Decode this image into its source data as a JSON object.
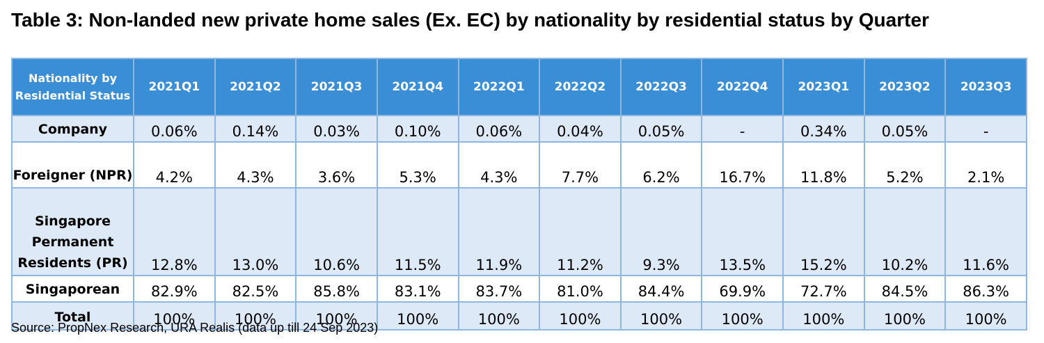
{
  "title": "Table 3: Non-landed new private home sales (Ex. EC) by nationality by residential status by Quarter",
  "table": {
    "corner_header": "Nationality by Residential Status",
    "quarters": [
      "2021Q1",
      "2021Q2",
      "2021Q3",
      "2021Q4",
      "2022Q1",
      "2022Q2",
      "2022Q3",
      "2022Q4",
      "2023Q1",
      "2023Q2",
      "2023Q3"
    ],
    "rows": [
      {
        "label": "Company",
        "values": [
          "0.06%",
          "0.14%",
          "0.03%",
          "0.10%",
          "0.06%",
          "0.04%",
          "0.05%",
          "-",
          "0.34%",
          "0.05%",
          "-"
        ]
      },
      {
        "label": "Foreigner (NPR)",
        "values": [
          "4.2%",
          "4.3%",
          "3.6%",
          "5.3%",
          "4.3%",
          "7.7%",
          "6.2%",
          "16.7%",
          "11.8%",
          "5.2%",
          "2.1%"
        ]
      },
      {
        "label": "Singapore Permanent Residents (PR)",
        "values": [
          "12.8%",
          "13.0%",
          "10.6%",
          "11.5%",
          "11.9%",
          "11.2%",
          "9.3%",
          "13.5%",
          "15.2%",
          "10.2%",
          "11.6%"
        ]
      },
      {
        "label": "Singaporean",
        "values": [
          "82.9%",
          "82.5%",
          "85.8%",
          "83.1%",
          "83.7%",
          "81.0%",
          "84.4%",
          "69.9%",
          "72.7%",
          "84.5%",
          "86.3%"
        ]
      },
      {
        "label": "Total",
        "values": [
          "100%",
          "100%",
          "100%",
          "100%",
          "100%",
          "100%",
          "100%",
          "100%",
          "100%",
          "100%",
          "100%"
        ]
      }
    ]
  },
  "source": "Source: PropNex Research, URA Realis (data up till 24 Sep 2023)",
  "colors": {
    "header_bg": "#3a8ed6",
    "header_text": "#ffffff",
    "shaded_row_bg": "#dde9f6",
    "border": "#8fb6de"
  }
}
